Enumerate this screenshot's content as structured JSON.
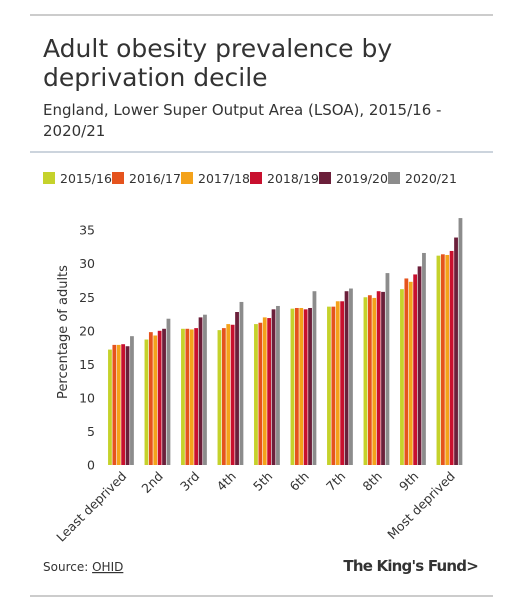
{
  "chart_data": {
    "type": "bar",
    "title": "Adult obesity prevalence by deprivation decile",
    "subtitle": "England, Lower Super Output Area (LSOA), 2015/16 - 2020/21",
    "y_label": "Percentage of adults",
    "categories": [
      "Least deprived",
      "2nd",
      "3rd",
      "4th",
      "5th",
      "6th",
      "7th",
      "8th",
      "9th",
      "Most deprived"
    ],
    "series": [
      {
        "name": "2015/16",
        "color": "#c5d22b",
        "values": [
          17.2,
          18.7,
          20.3,
          20.1,
          21.0,
          23.3,
          23.6,
          25.0,
          26.2,
          31.2
        ]
      },
      {
        "name": "2016/17",
        "color": "#e5531d",
        "values": [
          17.9,
          19.8,
          20.3,
          20.4,
          21.2,
          23.4,
          23.6,
          25.3,
          27.8,
          31.4
        ]
      },
      {
        "name": "2017/18",
        "color": "#f4a21a",
        "values": [
          17.9,
          19.3,
          20.2,
          21.0,
          22.0,
          23.4,
          24.4,
          24.9,
          27.3,
          31.3
        ]
      },
      {
        "name": "2018/19",
        "color": "#c8102e",
        "values": [
          18.0,
          20.0,
          20.4,
          20.9,
          21.9,
          23.2,
          24.4,
          25.9,
          28.4,
          31.9
        ]
      },
      {
        "name": "2019/20",
        "color": "#6b1f3a",
        "values": [
          17.7,
          20.3,
          22.0,
          22.8,
          23.2,
          23.4,
          25.9,
          25.8,
          29.6,
          33.9
        ]
      },
      {
        "name": "2020/21",
        "color": "#8c8c8c",
        "values": [
          19.2,
          21.8,
          22.4,
          24.3,
          23.7,
          25.9,
          26.3,
          28.6,
          31.6,
          36.8
        ]
      }
    ],
    "ylim": [
      0,
      38
    ],
    "yticks": [
      0,
      5,
      10,
      15,
      20,
      25,
      30,
      35
    ],
    "grid": false,
    "source_label": "Source:",
    "source_link": "OHID",
    "brand": "The King's Fund>"
  }
}
